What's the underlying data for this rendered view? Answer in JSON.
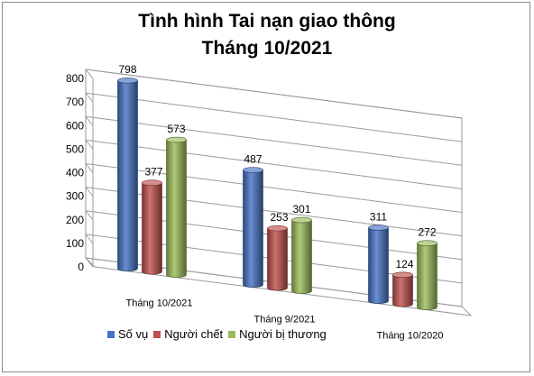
{
  "chart_data": {
    "type": "bar",
    "title": "Tình hình Tai nạn giao thông",
    "subtitle": "Tháng 10/2021",
    "categories": [
      "Tháng 10/2021",
      "Tháng 9/2021",
      "Tháng 10/2020"
    ],
    "series": [
      {
        "name": "Số vụ",
        "values": [
          798,
          487,
          311
        ],
        "color": "#4472c4"
      },
      {
        "name": "Người chết",
        "values": [
          377,
          253,
          124
        ],
        "color": "#c0504d"
      },
      {
        "name": "Người bị thương",
        "values": [
          573,
          301,
          272
        ],
        "color": "#9bbb59"
      }
    ],
    "ylim": [
      0,
      800
    ],
    "yticks": [
      0,
      100,
      200,
      300,
      400,
      500,
      600,
      700,
      800
    ],
    "grid": true,
    "legend": "bottom",
    "style": "3d-cylinder"
  }
}
